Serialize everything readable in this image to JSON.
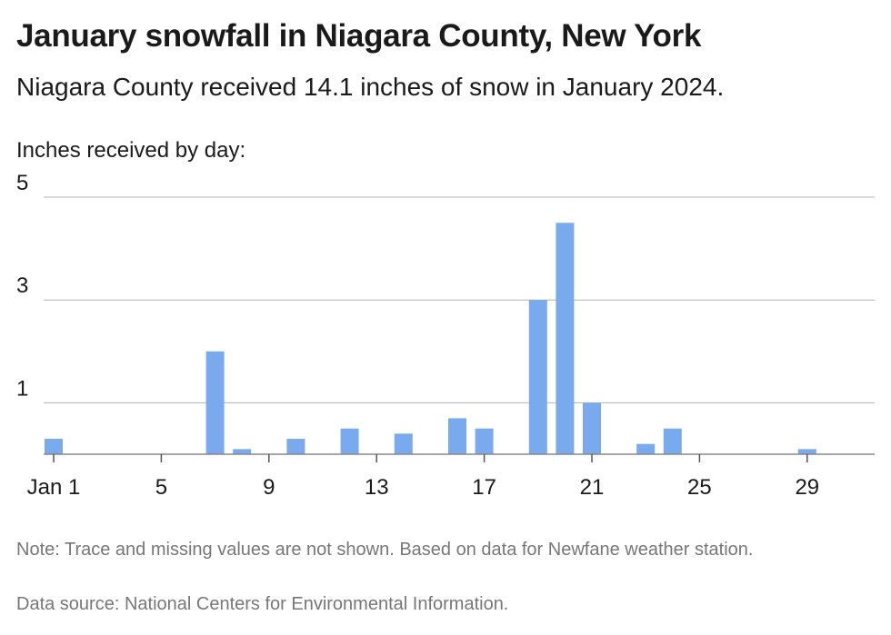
{
  "header": {
    "title": "January snowfall in Niagara County, New York",
    "subtitle": "Niagara County received 14.1 inches of snow in January 2024."
  },
  "footer": {
    "note": "Note: Trace and missing values are not shown. Based on data for Newfane weather station.",
    "source": "Data source: National Centers for Environmental Information."
  },
  "chart_data": {
    "type": "bar",
    "title": "January snowfall in Niagara County, New York",
    "subtitle": "Niagara County received 14.1 inches of snow in January 2024.",
    "ylabel": "Inches received by day:",
    "xlabel": "",
    "ylim": [
      0,
      5
    ],
    "yticks": [
      1,
      3,
      5
    ],
    "grid": "horizontal",
    "bar_color": "#7aaaee",
    "x_domain": [
      1,
      31
    ],
    "xtick_labels": [
      {
        "x": 1,
        "label": "Jan 1"
      },
      {
        "x": 5,
        "label": "5"
      },
      {
        "x": 9,
        "label": "9"
      },
      {
        "x": 13,
        "label": "13"
      },
      {
        "x": 17,
        "label": "17"
      },
      {
        "x": 21,
        "label": "21"
      },
      {
        "x": 25,
        "label": "25"
      },
      {
        "x": 29,
        "label": "29"
      }
    ],
    "days": [
      1,
      7,
      8,
      10,
      12,
      14,
      16,
      17,
      19,
      20,
      21,
      23,
      24,
      29
    ],
    "values": [
      0.3,
      2.0,
      0.1,
      0.3,
      0.5,
      0.4,
      0.7,
      0.5,
      3.0,
      4.5,
      1.0,
      0.2,
      0.5,
      0.1
    ]
  }
}
